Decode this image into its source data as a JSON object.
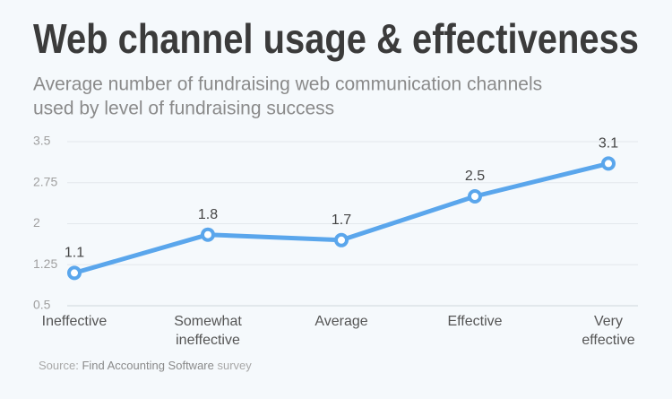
{
  "chart_data": {
    "type": "line",
    "title": "Web channel usage & effectiveness",
    "subtitle": [
      "Average number of fundraising web communication channels",
      "used by level of fundraising success"
    ],
    "categories": [
      "Ineffective",
      "Somewhat ineffective",
      "Average",
      "Effective",
      "Very effective"
    ],
    "series": [
      {
        "name": "Average number of channels",
        "color": "#5aa6ec",
        "values": [
          1.1,
          1.8,
          1.7,
          2.5,
          3.1
        ]
      }
    ],
    "ylim": [
      0.5,
      3.5
    ],
    "yticks": [
      0.5,
      1.25,
      2,
      2.75,
      3.5
    ],
    "grid": true,
    "source": {
      "prefix": "Source:",
      "name": "Find Accounting Software",
      "suffix": "survey"
    }
  }
}
